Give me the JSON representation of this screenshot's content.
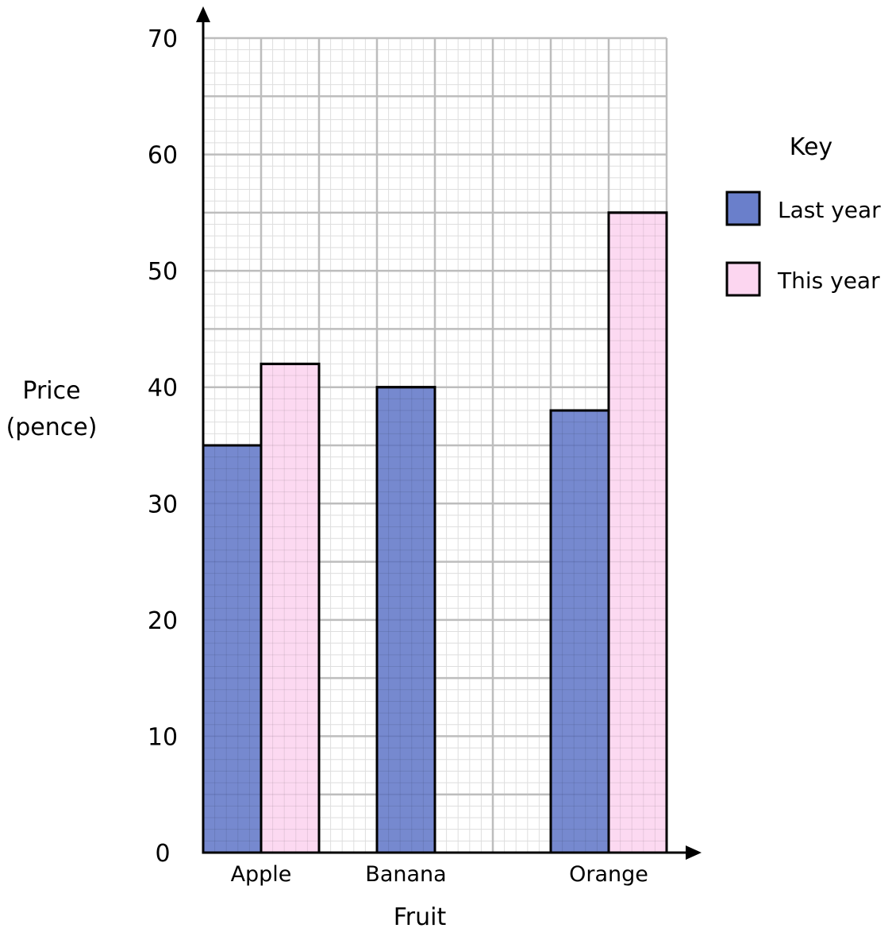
{
  "chart_data": {
    "type": "bar",
    "categories": [
      "Apple",
      "Banana",
      "Orange"
    ],
    "series": [
      {
        "name": "Last year",
        "color": "#6a7fcb",
        "values": [
          35,
          40,
          38
        ]
      },
      {
        "name": "This year",
        "color": "#fcd6f0",
        "values": [
          42,
          null,
          55
        ]
      }
    ],
    "xlabel": "Fruit",
    "ylabel": [
      "Price",
      "(pence)"
    ],
    "ylim": [
      0,
      70
    ],
    "yticks": [
      0,
      10,
      20,
      30,
      40,
      50,
      60,
      70
    ],
    "grid": true,
    "legend": {
      "title": "Key",
      "placement": "right"
    }
  }
}
